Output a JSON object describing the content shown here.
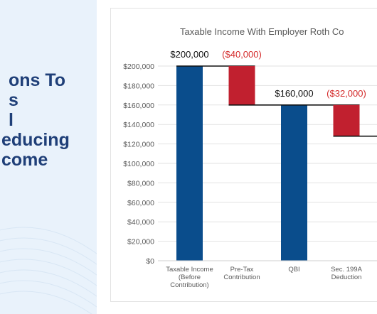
{
  "article": {
    "headline_lines": [
      "ons To",
      "s",
      "l",
      "educing",
      "come"
    ]
  },
  "chart_data": {
    "type": "bar",
    "title": "Taxable Income With Employer Roth Co",
    "categories": [
      [
        "Taxable Income",
        "(Before",
        "Contribution)"
      ],
      [
        "Pre-Tax",
        "Contribution"
      ],
      [
        "QBI"
      ],
      [
        "Sec. 199A",
        "Deduction"
      ]
    ],
    "bars": [
      {
        "start": 0,
        "end": 200000,
        "label": "$200,000",
        "kind": "total"
      },
      {
        "start": 160000,
        "end": 200000,
        "label": "($40,000)",
        "kind": "decrease"
      },
      {
        "start": 0,
        "end": 160000,
        "label": "$160,000",
        "kind": "total"
      },
      {
        "start": 128000,
        "end": 160000,
        "label": "($32,000)",
        "kind": "decrease"
      }
    ],
    "ylim": [
      0,
      200000
    ],
    "yticks": [
      "$0",
      "$20,000",
      "$40,000",
      "$60,000",
      "$80,000",
      "$100,000",
      "$120,000",
      "$140,000",
      "$160,000",
      "$180,000",
      "$200,000"
    ],
    "grid": true,
    "colors": {
      "total": "#0a4d8c",
      "decrease": "#c1202f",
      "label_total": "#111111",
      "label_decrease": "#d42a2a"
    }
  }
}
